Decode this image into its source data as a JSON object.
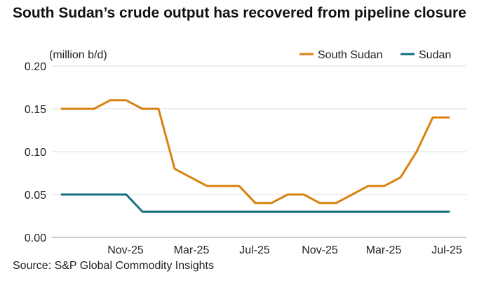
{
  "chart_data": {
    "type": "line",
    "title": "South Sudan’s crude output has recovered from pipeline closure",
    "ylabel": "(million b/d)",
    "xlabel": "",
    "ylim": [
      0,
      0.2
    ],
    "y_ticks": [
      "0.00",
      "0.05",
      "0.10",
      "0.15",
      "0.20"
    ],
    "x_ticks": [
      "Nov-25",
      "Mar-25",
      "Jul-25",
      "Nov-25",
      "Mar-25",
      "Jul-25"
    ],
    "grid": true,
    "legend_position": "top-right",
    "x": [
      0,
      1,
      2,
      3,
      4,
      5,
      6,
      7,
      8,
      9,
      10,
      11,
      12,
      13,
      14,
      15,
      16,
      17,
      18,
      19,
      20,
      21,
      22,
      23,
      24
    ],
    "series": [
      {
        "name": "South Sudan",
        "color": "#d9820f",
        "values": [
          0.15,
          0.15,
          0.15,
          0.16,
          0.16,
          0.15,
          0.15,
          0.08,
          0.07,
          0.06,
          0.06,
          0.06,
          0.04,
          0.04,
          0.05,
          0.05,
          0.04,
          0.04,
          0.05,
          0.06,
          0.06,
          0.07,
          0.1,
          0.14,
          0.14
        ]
      },
      {
        "name": "Sudan",
        "color": "#146d80",
        "values": [
          0.05,
          0.05,
          0.05,
          0.05,
          0.05,
          0.03,
          0.03,
          0.03,
          0.03,
          0.03,
          0.03,
          0.03,
          0.03,
          0.03,
          0.03,
          0.03,
          0.03,
          0.03,
          0.03,
          0.03,
          0.03,
          0.03,
          0.03,
          0.03,
          0.03
        ]
      }
    ]
  },
  "source": "Source: S&P Global Commodity Insights"
}
